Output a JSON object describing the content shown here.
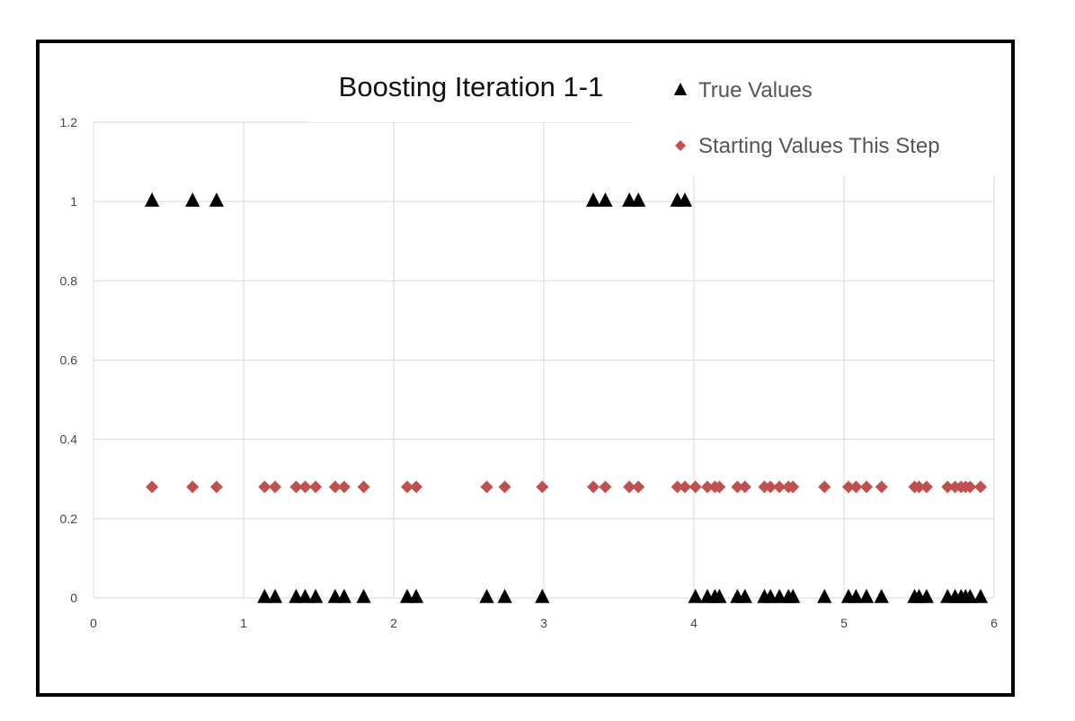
{
  "chart_data": {
    "type": "scatter",
    "title": "Boosting Iteration 1-1",
    "xlabel": "",
    "ylabel": "",
    "xlim": [
      0,
      6
    ],
    "ylim": [
      0,
      1.2
    ],
    "x_ticks": [
      "0",
      "1",
      "2",
      "3",
      "4",
      "5",
      "6"
    ],
    "y_ticks": [
      "0",
      "0.2",
      "0.4",
      "0.6",
      "0.8",
      "1",
      "1.2"
    ],
    "grid": true,
    "legend_position": "top-right",
    "series": [
      {
        "name": "True Values",
        "marker": "triangle",
        "color": "#000000",
        "points": [
          [
            0.39,
            1
          ],
          [
            0.66,
            1
          ],
          [
            0.82,
            1
          ],
          [
            1.14,
            0
          ],
          [
            1.21,
            0
          ],
          [
            1.35,
            0
          ],
          [
            1.41,
            0
          ],
          [
            1.48,
            0
          ],
          [
            1.61,
            0
          ],
          [
            1.67,
            0
          ],
          [
            1.8,
            0
          ],
          [
            2.09,
            0
          ],
          [
            2.15,
            0
          ],
          [
            2.62,
            0
          ],
          [
            2.74,
            0
          ],
          [
            2.99,
            0
          ],
          [
            3.33,
            1
          ],
          [
            3.41,
            1
          ],
          [
            3.57,
            1
          ],
          [
            3.63,
            1
          ],
          [
            3.89,
            1
          ],
          [
            3.94,
            1
          ],
          [
            4.01,
            0
          ],
          [
            4.09,
            0
          ],
          [
            4.14,
            0
          ],
          [
            4.17,
            0
          ],
          [
            4.29,
            0
          ],
          [
            4.34,
            0
          ],
          [
            4.47,
            0
          ],
          [
            4.51,
            0
          ],
          [
            4.57,
            0
          ],
          [
            4.63,
            0
          ],
          [
            4.66,
            0
          ],
          [
            4.87,
            0
          ],
          [
            5.03,
            0
          ],
          [
            5.08,
            0
          ],
          [
            5.15,
            0
          ],
          [
            5.25,
            0
          ],
          [
            5.47,
            0
          ],
          [
            5.5,
            0
          ],
          [
            5.55,
            0
          ],
          [
            5.69,
            0
          ],
          [
            5.74,
            0
          ],
          [
            5.78,
            0
          ],
          [
            5.81,
            0
          ],
          [
            5.84,
            0
          ],
          [
            5.91,
            0
          ]
        ]
      },
      {
        "name": "Starting Values This Step",
        "marker": "diamond",
        "color": "#c0504d",
        "points": [
          [
            0.39,
            0.28
          ],
          [
            0.66,
            0.28
          ],
          [
            0.82,
            0.28
          ],
          [
            1.14,
            0.28
          ],
          [
            1.21,
            0.28
          ],
          [
            1.35,
            0.28
          ],
          [
            1.41,
            0.28
          ],
          [
            1.48,
            0.28
          ],
          [
            1.61,
            0.28
          ],
          [
            1.67,
            0.28
          ],
          [
            1.8,
            0.28
          ],
          [
            2.09,
            0.28
          ],
          [
            2.15,
            0.28
          ],
          [
            2.62,
            0.28
          ],
          [
            2.74,
            0.28
          ],
          [
            2.99,
            0.28
          ],
          [
            3.33,
            0.28
          ],
          [
            3.41,
            0.28
          ],
          [
            3.57,
            0.28
          ],
          [
            3.63,
            0.28
          ],
          [
            3.89,
            0.28
          ],
          [
            3.94,
            0.28
          ],
          [
            4.01,
            0.28
          ],
          [
            4.09,
            0.28
          ],
          [
            4.14,
            0.28
          ],
          [
            4.17,
            0.28
          ],
          [
            4.29,
            0.28
          ],
          [
            4.34,
            0.28
          ],
          [
            4.47,
            0.28
          ],
          [
            4.51,
            0.28
          ],
          [
            4.57,
            0.28
          ],
          [
            4.63,
            0.28
          ],
          [
            4.66,
            0.28
          ],
          [
            4.87,
            0.28
          ],
          [
            5.03,
            0.28
          ],
          [
            5.08,
            0.28
          ],
          [
            5.15,
            0.28
          ],
          [
            5.25,
            0.28
          ],
          [
            5.47,
            0.28
          ],
          [
            5.5,
            0.28
          ],
          [
            5.55,
            0.28
          ],
          [
            5.69,
            0.28
          ],
          [
            5.74,
            0.28
          ],
          [
            5.78,
            0.28
          ],
          [
            5.81,
            0.28
          ],
          [
            5.84,
            0.28
          ],
          [
            5.91,
            0.28
          ]
        ]
      }
    ]
  },
  "colors": {
    "grid": "#d9d9d9",
    "frame": "#000000",
    "true_values": "#000000",
    "starting_values": "#c0504d"
  }
}
